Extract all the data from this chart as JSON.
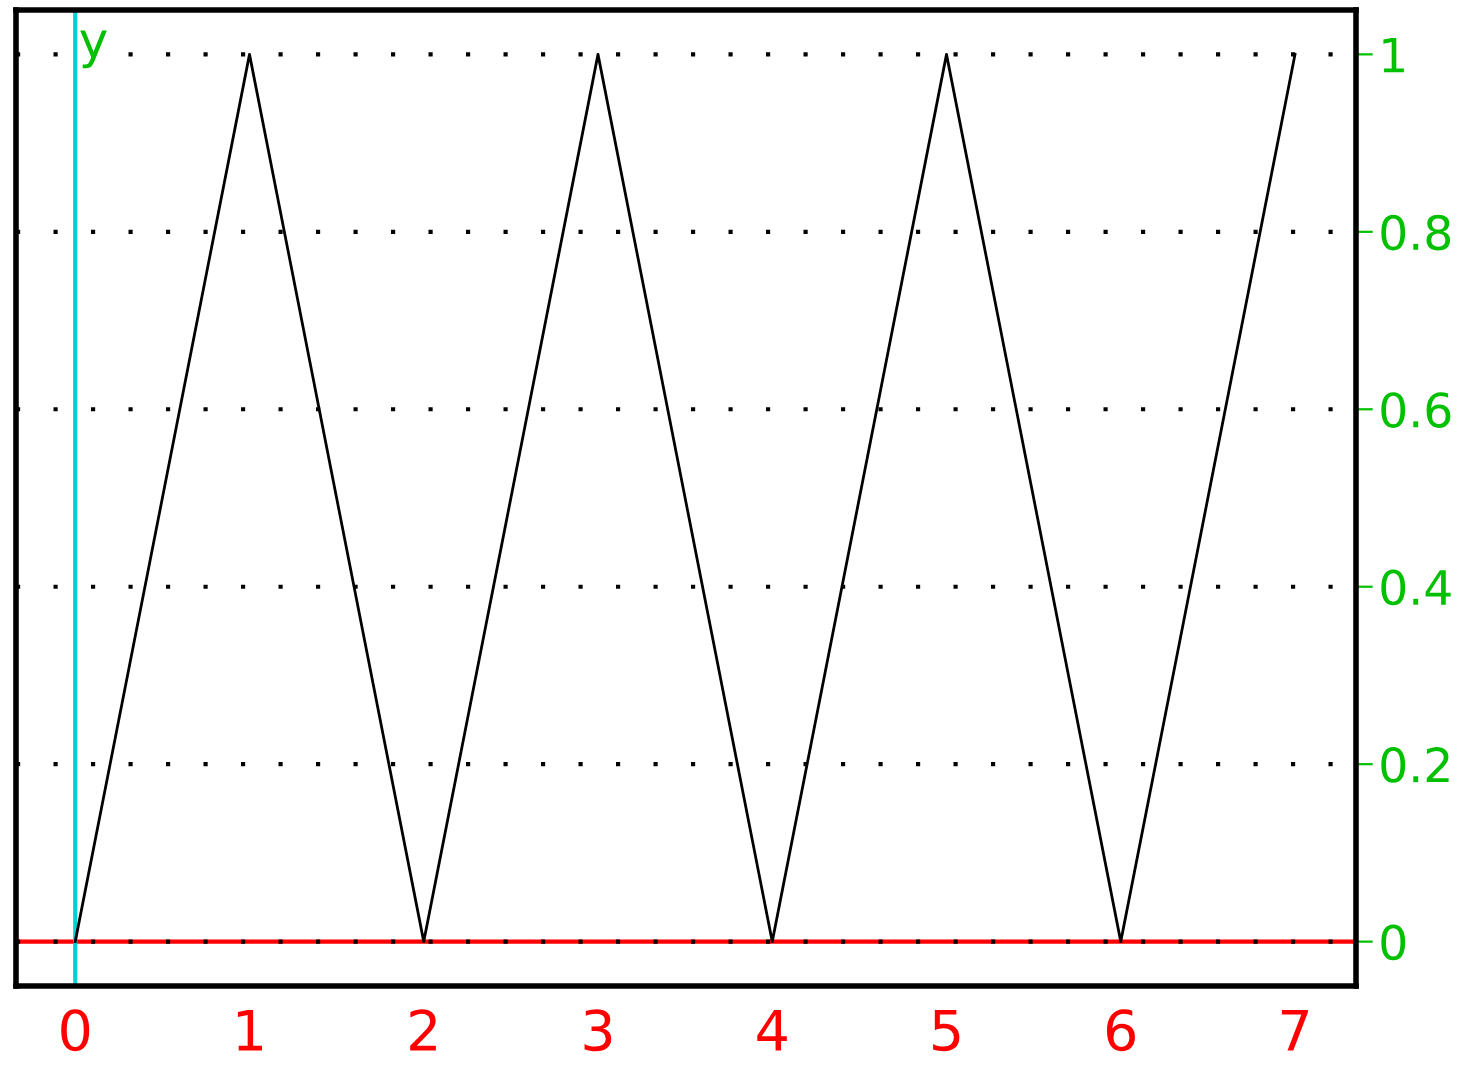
{
  "chart_data": {
    "type": "line",
    "ylabel": "y",
    "x": [
      0,
      1,
      2,
      3,
      4,
      5,
      6,
      7
    ],
    "series": [
      {
        "color": "#000000",
        "values": [
          0,
          1,
          0,
          1,
          0,
          1,
          0,
          1
        ]
      }
    ],
    "xlim": [
      -0.34,
      7.35
    ],
    "ylim": [
      -0.05,
      1.05
    ],
    "xticks": [
      0,
      1,
      2,
      3,
      4,
      5,
      6,
      7
    ],
    "yticks": [
      0,
      0.2,
      0.4,
      0.6,
      0.8,
      1
    ],
    "ref_lines": [
      {
        "axis": "y",
        "value": 0,
        "color": "#ff0000"
      },
      {
        "axis": "x",
        "value": 0,
        "color": "#00d0d0"
      }
    ],
    "grid": "y",
    "marker": "none",
    "line_style": "solid"
  }
}
